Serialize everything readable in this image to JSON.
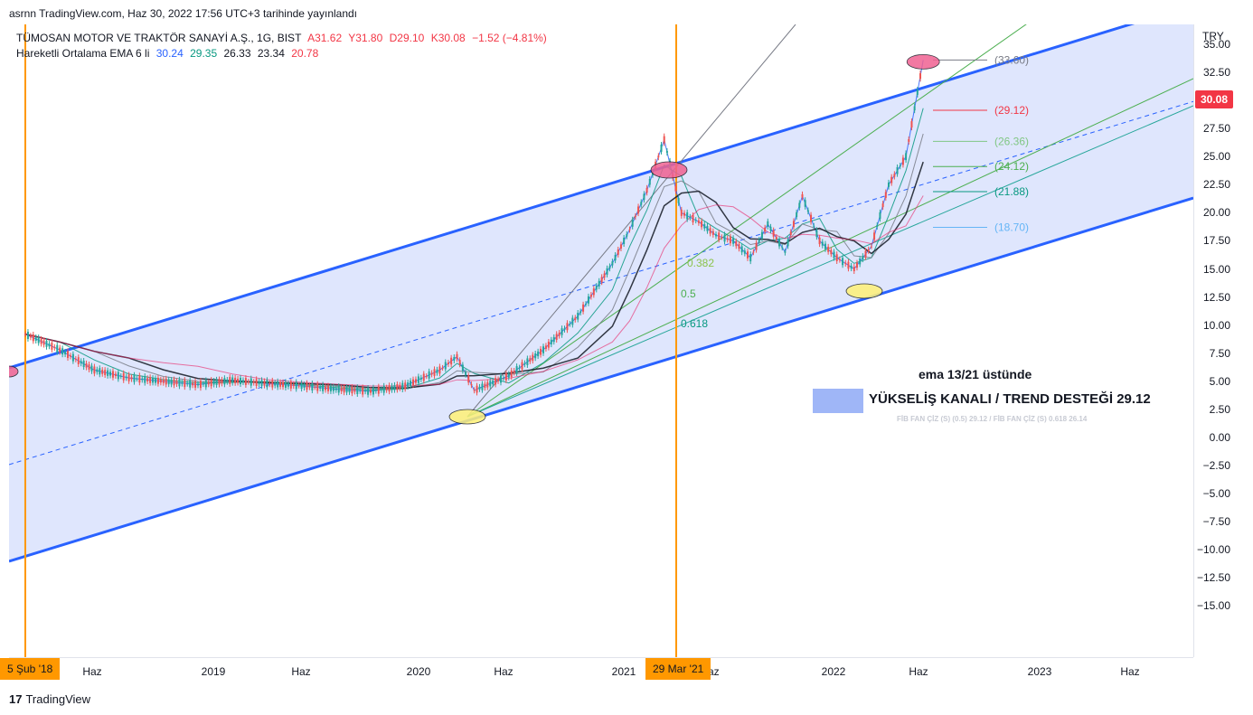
{
  "header": {
    "publish_note": "asrnn TradingView.com, Haz 30, 2022 17:56 UTC+3 tarihinde yayınlandı",
    "symbol": "TÜMOSAN MOTOR VE TRAKTÖR SANAYİ A.Ş., 1G, BIST",
    "ohlc": {
      "A": "A31.62",
      "Y": "Y31.80",
      "D": "D29.10",
      "K": "K30.08",
      "change": "−1.52 (−4.81%)"
    },
    "ema_label": "Hareketli Ortalama EMA 6 li",
    "ema_values": [
      "30.24",
      "29.35",
      "26.33",
      "23.34",
      "20.78"
    ]
  },
  "colors": {
    "accent_blue": "#2962ff",
    "channel_fill": "#dfe6fd",
    "orange_line": "#ff9800",
    "up": "#26a69a",
    "down": "#ef5350",
    "price_badge": "#f23645",
    "ema_colors": [
      "#2962ff",
      "#089981",
      "#787b86",
      "#131722",
      "#f23645"
    ]
  },
  "axis": {
    "currency": "TRY",
    "ticks": [
      "35.00",
      "32.50",
      "30.00",
      "27.50",
      "25.00",
      "22.50",
      "20.00",
      "17.50",
      "15.00",
      "12.50",
      "10.00",
      "7.50",
      "5.00",
      "2.50",
      "0.00",
      "−2.50",
      "−5.00",
      "−7.50",
      "−10.00",
      "−12.50",
      "−15.00"
    ],
    "current_price": "30.08",
    "x_labels": [
      "Haz",
      "2019",
      "Haz",
      "2020",
      "Haz",
      "2021",
      "Haz",
      "2022",
      "Haz",
      "2023",
      "Haz"
    ],
    "date_markers": [
      "5 Şub '18",
      "29 Mar '21"
    ]
  },
  "fib_levels": [
    {
      "label": "(33.60)",
      "value": 33.6
    },
    {
      "label": "(29.12)",
      "value": 29.12
    },
    {
      "label": "(26.36)",
      "value": 26.36
    },
    {
      "label": "(24.12)",
      "value": 24.12
    },
    {
      "label": "(21.88)",
      "value": 21.88
    },
    {
      "label": "(18.70)",
      "value": 18.7
    }
  ],
  "fan_labels": [
    "0.382",
    "0.5",
    "0.618"
  ],
  "annotations": {
    "ema_note": "ema 13/21 üstünde",
    "channel_note": "YÜKSELİŞ KANALI / TREND DESTEĞİ 29.12",
    "fib_fan_note": "FİB FAN ÇİZ (S) (0.5) 29.12 / FİB FAN ÇİZ (S) 0.618 26.14"
  },
  "footer": {
    "brand": "TradingView"
  },
  "chart_data": {
    "type": "line",
    "title": "TÜMOSAN MOTOR VE TRAKTÖR SANAYİ A.Ş., 1G, BIST",
    "y_unit": "TRY",
    "ylim": [
      -16.5,
      37.5
    ],
    "x": [
      "2018-02",
      "2018-04",
      "2018-06",
      "2018-08",
      "2018-10",
      "2018-12",
      "2019-02",
      "2019-04",
      "2019-06",
      "2019-08",
      "2019-10",
      "2019-12",
      "2020-02",
      "2020-03",
      "2020-04",
      "2020-06",
      "2020-08",
      "2020-10",
      "2020-12",
      "2021-01",
      "2021-02",
      "2021-03",
      "2021-04",
      "2021-05",
      "2021-06",
      "2021-07",
      "2021-08",
      "2021-09",
      "2021-10",
      "2021-11",
      "2021-12",
      "2022-01",
      "2022-02",
      "2022-03",
      "2022-04",
      "2022-05",
      "2022-06"
    ],
    "series": [
      {
        "values": [
          9.2,
          7.8,
          6.0,
          5.3,
          5.0,
          4.7,
          5.1,
          4.8,
          4.6,
          4.3,
          4.1,
          4.6,
          6.0,
          7.2,
          4.2,
          5.5,
          7.8,
          10.8,
          15.5,
          18.5,
          22.0,
          26.5,
          20.0,
          19.2,
          18.0,
          17.5,
          16.0,
          19.0,
          16.5,
          21.5,
          17.5,
          16.0,
          15.0,
          17.0,
          22.5,
          25.0,
          33.6
        ]
      }
    ],
    "trend_channel": {
      "upper": "x"
    },
    "vertical_markers": [
      "5 Şub '18",
      "29 Mar '21"
    ],
    "grid": false
  }
}
